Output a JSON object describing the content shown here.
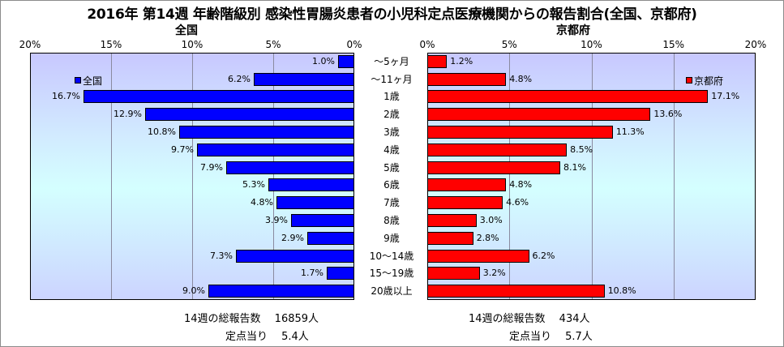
{
  "title": "2016年 第14週 年齢階級別 感染性胃腸炎患者の小児科定点医療機関からの報告割合(全国、京都府)",
  "panels": {
    "left_title": "全国",
    "right_title": "京都府",
    "left_ticks": [
      "20%",
      "15%",
      "10%",
      "5%",
      "0%"
    ],
    "right_ticks": [
      "0%",
      "5%",
      "10%",
      "15%",
      "20%"
    ]
  },
  "legend": {
    "left": "全国",
    "right": "京都府"
  },
  "colors": {
    "zenkoku": "#0000ff",
    "kyoto": "#ff0000"
  },
  "footer": {
    "left_report": "14週の総報告数　 16859人",
    "left_per": "定点当り　 5.4人",
    "right_report": "14週の総報告数　 434人",
    "right_per": "定点当り　 5.7人"
  },
  "chart_data": {
    "type": "bar",
    "orientation": "horizontal-population-pyramid",
    "categories": [
      "～5ヶ月",
      "～11ヶ月",
      "1歳",
      "2歳",
      "3歳",
      "4歳",
      "5歳",
      "6歳",
      "7歳",
      "8歳",
      "9歳",
      "10～14歳",
      "15～19歳",
      "20歳以上"
    ],
    "series": [
      {
        "name": "全国",
        "values": [
          1.0,
          6.2,
          16.7,
          12.9,
          10.8,
          9.7,
          7.9,
          5.3,
          4.8,
          3.9,
          2.9,
          7.3,
          1.7,
          9.0
        ],
        "labels": [
          "1.0%",
          "6.2%",
          "16.7%",
          "12.9%",
          "10.8%",
          "9.7%",
          "7.9%",
          "5.3%",
          "4.8%",
          "3.9%",
          "2.9%",
          "7.3%",
          "1.7%",
          "9.0%"
        ]
      },
      {
        "name": "京都府",
        "values": [
          1.2,
          4.8,
          17.1,
          13.6,
          11.3,
          8.5,
          8.1,
          4.8,
          4.6,
          3.0,
          2.8,
          6.2,
          3.2,
          10.8
        ],
        "labels": [
          "1.2%",
          "4.8%",
          "17.1%",
          "13.6%",
          "11.3%",
          "8.5%",
          "8.1%",
          "4.8%",
          "4.6%",
          "3.0%",
          "2.8%",
          "6.2%",
          "3.2%",
          "10.8%"
        ]
      }
    ],
    "xlim": [
      0,
      20
    ],
    "grid": true,
    "legend_position": "top-left (全国), top-right (京都府)"
  }
}
